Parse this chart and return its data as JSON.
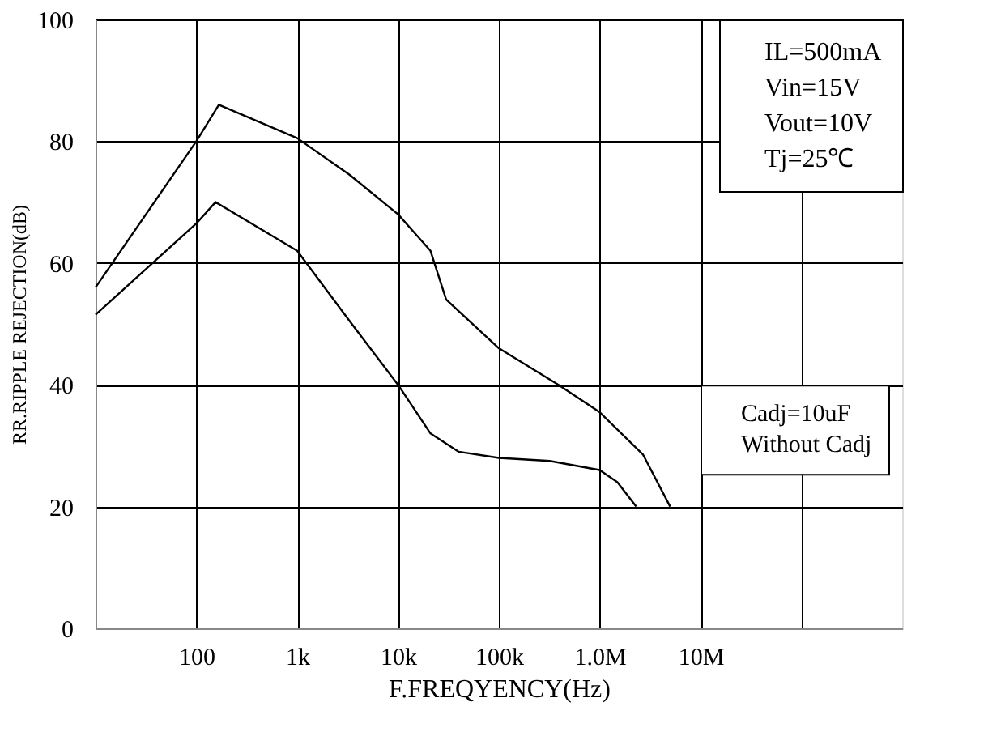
{
  "chart_data": {
    "type": "line",
    "xlabel": "F.FREQYENCY(Hz)",
    "ylabel": "RR.RIPPLE REJECTION(dB)",
    "log": "x",
    "xlim": [
      10,
      1000000000
    ],
    "ylim": [
      0,
      100
    ],
    "xticks": [
      {
        "value": 100,
        "label": "100"
      },
      {
        "value": 1000,
        "label": "1k"
      },
      {
        "value": 10000,
        "label": "10k"
      },
      {
        "value": 100000,
        "label": "100k"
      },
      {
        "value": 1000000,
        "label": "1.0M"
      },
      {
        "value": 10000000,
        "label": "10M"
      },
      {
        "value": 100000000,
        "label": null
      }
    ],
    "yticks": [
      0,
      20,
      40,
      60,
      80,
      100
    ],
    "grid": true,
    "legend": "bottom right",
    "line_style": "solid",
    "marker": "none",
    "annotations": [
      "IL=500mA",
      "Vin=15V",
      "Vout=10V",
      "Tj=25℃"
    ],
    "series": [
      {
        "name": "Cadj=10uF",
        "color": "#000000",
        "x": [
          10,
          100,
          167,
          1000,
          3300,
          10000,
          21000,
          30000,
          100000,
          390000,
          1000000,
          2700000,
          5000000
        ],
        "values": [
          56,
          80,
          86,
          80.5,
          74.5,
          68,
          62,
          54,
          46,
          40,
          35.5,
          28.5,
          20
        ]
      },
      {
        "name": "Without Cadj",
        "color": "#000000",
        "x": [
          10,
          100,
          155,
          1000,
          3300,
          10000,
          21000,
          40000,
          100000,
          320000,
          1000000,
          1500000,
          2300000
        ],
        "values": [
          51.5,
          66.5,
          70,
          62,
          50.5,
          40,
          32,
          29,
          28,
          27.5,
          26,
          24,
          20
        ]
      }
    ]
  }
}
